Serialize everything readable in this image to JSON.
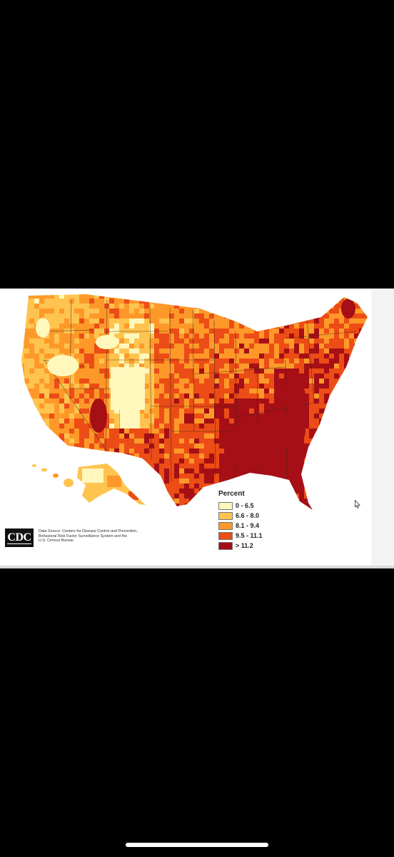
{
  "legend": {
    "title": "Percent",
    "items": [
      {
        "label": "0 - 6.5",
        "color": "#fff7bc"
      },
      {
        "label": "6.6 - 8.0",
        "color": "#fec44f"
      },
      {
        "label": "8.1 - 9.4",
        "color": "#fe9929"
      },
      {
        "label": "9.5 - 11.1",
        "color": "#ec4c16"
      },
      {
        "label": "> 11.2",
        "color": "#a50f15"
      }
    ]
  },
  "logo": {
    "text": "CDC"
  },
  "source": {
    "lines": [
      "Data Source: Centers for Disease Control and Prevention,",
      "Behavioral Risk Factor Surveillance System and the",
      "U.S. Census Bureau"
    ]
  },
  "colors": {
    "background": "#000000",
    "card": "#ffffff",
    "state_border": "#3a2a1a"
  },
  "icons": {
    "cursor": "mouse-pointer-icon"
  }
}
